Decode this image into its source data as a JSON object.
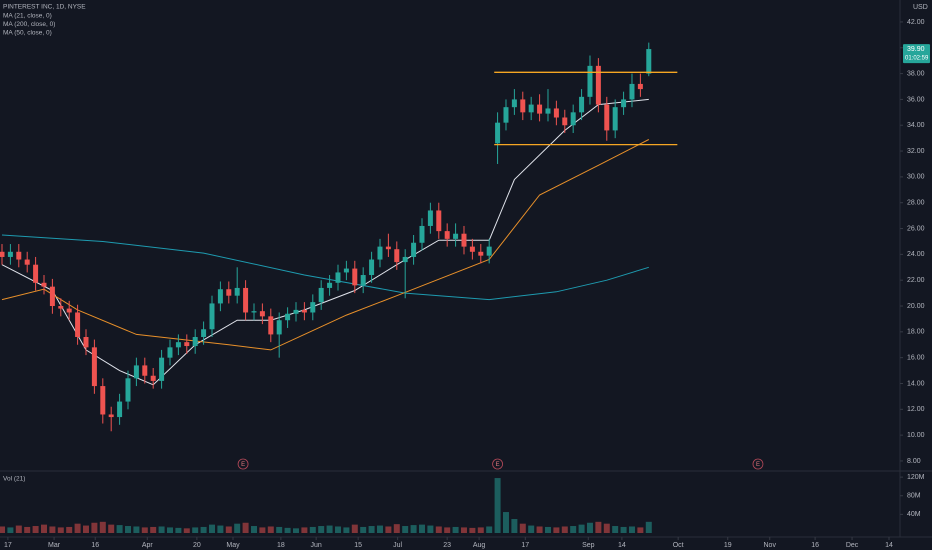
{
  "chart_data": {
    "type": "candlestick",
    "title": "PINTEREST INC, 1D, NYSE",
    "currency": "USD",
    "volume_label": "Vol (21)",
    "up_color": "#26a69a",
    "down_color": "#ef5350",
    "grid": false,
    "open": [
      24.2,
      23.8,
      24.2,
      23.6,
      23.2,
      21.8,
      21.5,
      20.0,
      19.8,
      19.5,
      17.6,
      16.8,
      13.8,
      11.6,
      11.4,
      12.6,
      14.4,
      15.4,
      14.6,
      14.2,
      16.0,
      16.8,
      17.2,
      16.9,
      17.6,
      18.2,
      20.2,
      21.3,
      20.8,
      21.4,
      19.5,
      19.6,
      19.2,
      17.8,
      18.9,
      19.4,
      19.7,
      19.5,
      20.3,
      21.4,
      21.8,
      22.6,
      22.9,
      21.6,
      22.4,
      23.6,
      24.6,
      24.4,
      23.4,
      23.8,
      24.9,
      26.2,
      27.4,
      25.8,
      25.2,
      25.6,
      24.6,
      24.2,
      23.9,
      32.6,
      34.2,
      35.4,
      36.0,
      35.0,
      35.6,
      34.9,
      35.3,
      34.6,
      34.0,
      35.0,
      36.2,
      38.6,
      35.6,
      33.6,
      35.4,
      36.0,
      37.2,
      38.0
    ],
    "high": [
      24.8,
      24.8,
      24.8,
      24.2,
      23.8,
      22.4,
      22.1,
      20.6,
      20.4,
      20.1,
      18.2,
      17.4,
      14.4,
      12.2,
      13.2,
      15.0,
      16.0,
      16.0,
      15.2,
      16.6,
      17.4,
      17.8,
      17.8,
      18.2,
      18.8,
      20.8,
      21.9,
      21.9,
      23.0,
      22.0,
      20.2,
      20.2,
      19.8,
      19.5,
      19.9,
      20.3,
      20.3,
      20.9,
      22.0,
      22.4,
      23.2,
      23.5,
      23.5,
      23.0,
      24.2,
      25.2,
      25.6,
      25.0,
      24.4,
      25.5,
      26.8,
      28.0,
      28.0,
      26.4,
      26.4,
      26.2,
      25.2,
      24.8,
      25.2,
      35.0,
      36.0,
      36.8,
      36.6,
      36.2,
      36.4,
      36.8,
      35.9,
      35.2,
      35.6,
      36.8,
      39.4,
      39.2,
      36.2,
      36.0,
      36.6,
      38.0,
      38.0,
      40.4
    ],
    "low": [
      23.2,
      23.2,
      23.0,
      22.6,
      21.2,
      20.9,
      19.4,
      19.2,
      18.9,
      17.0,
      16.2,
      13.2,
      10.9,
      10.3,
      10.8,
      12.0,
      13.8,
      14.0,
      13.6,
      13.6,
      15.4,
      16.2,
      16.3,
      16.3,
      17.0,
      17.6,
      19.6,
      20.2,
      20.2,
      18.9,
      18.9,
      18.6,
      17.2,
      16.0,
      18.3,
      18.8,
      18.9,
      18.9,
      19.7,
      20.8,
      21.2,
      22.0,
      21.0,
      21.0,
      21.8,
      23.0,
      23.8,
      22.8,
      20.6,
      23.2,
      24.3,
      25.6,
      25.2,
      24.6,
      24.6,
      24.0,
      23.6,
      23.3,
      23.3,
      31.0,
      33.6,
      34.8,
      34.4,
      34.4,
      34.3,
      34.3,
      34.0,
      33.4,
      33.4,
      34.4,
      35.6,
      35.0,
      32.8,
      33.0,
      34.8,
      35.4,
      36.2,
      37.8
    ],
    "close": [
      23.8,
      24.2,
      23.6,
      23.2,
      21.8,
      21.5,
      20.0,
      19.8,
      19.5,
      17.6,
      16.8,
      13.8,
      11.6,
      11.4,
      12.6,
      14.4,
      15.4,
      14.6,
      14.2,
      16.0,
      16.8,
      17.2,
      16.9,
      17.6,
      18.2,
      20.2,
      21.3,
      20.8,
      21.4,
      19.5,
      19.6,
      19.2,
      17.8,
      18.9,
      19.4,
      19.7,
      19.5,
      20.3,
      21.4,
      21.8,
      22.6,
      22.9,
      21.6,
      22.4,
      23.6,
      24.6,
      24.4,
      23.4,
      23.8,
      24.9,
      26.2,
      27.4,
      25.8,
      25.2,
      25.6,
      24.6,
      24.2,
      23.9,
      24.6,
      34.2,
      35.4,
      36.0,
      35.0,
      35.6,
      34.9,
      35.3,
      34.6,
      34.0,
      35.0,
      36.2,
      38.6,
      35.6,
      33.6,
      35.4,
      36.0,
      37.2,
      36.8,
      39.9
    ],
    "volume": [
      14,
      12,
      16,
      13,
      15,
      18,
      14,
      12,
      13,
      20,
      16,
      22,
      24,
      18,
      17,
      15,
      14,
      12,
      13,
      14,
      12,
      11,
      10,
      12,
      13,
      18,
      16,
      14,
      20,
      22,
      15,
      12,
      14,
      13,
      11,
      10,
      12,
      13,
      15,
      16,
      14,
      12,
      18,
      13,
      15,
      16,
      14,
      19,
      15,
      17,
      18,
      16,
      14,
      12,
      13,
      12,
      11,
      12,
      14,
      118,
      45,
      30,
      20,
      16,
      14,
      13,
      12,
      14,
      15,
      18,
      22,
      24,
      20,
      15,
      13,
      14,
      12,
      24
    ],
    "series": [
      {
        "name": "MA (21, close, 0)",
        "color": "#e0e3eb",
        "x": [
          0,
          6,
          10,
          14,
          18,
          23,
          28,
          32,
          36,
          42,
          47,
          52,
          58,
          61,
          67,
          71,
          77
        ],
        "values": [
          23.2,
          21.2,
          16.6,
          15.0,
          13.9,
          17.0,
          18.9,
          18.9,
          19.7,
          21.2,
          23.2,
          25.1,
          25.1,
          29.8,
          33.6,
          35.6,
          36.0
        ]
      },
      {
        "name": "MA (200, close, 0)",
        "color": "#1e9bb0",
        "x": [
          0,
          12,
          24,
          36,
          48,
          58,
          66,
          72,
          77
        ],
        "values": [
          25.5,
          25.0,
          24.1,
          22.4,
          21.0,
          20.5,
          21.1,
          22.0,
          23.0
        ]
      },
      {
        "name": "MA (50, close, 0)",
        "color": "#e8902a",
        "x": [
          0,
          5,
          9,
          16,
          27,
          32,
          36,
          41,
          47,
          58,
          64,
          71,
          77
        ],
        "values": [
          20.5,
          21.3,
          19.7,
          17.8,
          17.0,
          16.6,
          17.8,
          19.3,
          20.8,
          23.6,
          28.6,
          30.9,
          32.9
        ]
      }
    ],
    "levels": {
      "values": [
        38.1,
        32.5
      ],
      "x": [
        58.6,
        80.4
      ],
      "color": "#f5a623"
    },
    "earnings": {
      "label": "E",
      "x": [
        28.7,
        59,
        90
      ]
    },
    "price_tag": {
      "value": 39.9,
      "label": "39.90"
    },
    "countdown": "01:02:59",
    "xlim": [
      -0.238,
      106.67
    ],
    "xticks": [
      {
        "value": 0.7,
        "label": "17"
      },
      {
        "value": 6.2,
        "label": "Mar"
      },
      {
        "value": 11.1,
        "label": "16"
      },
      {
        "value": 17.3,
        "label": "Apr"
      },
      {
        "value": 23.2,
        "label": "20"
      },
      {
        "value": 27.5,
        "label": "May"
      },
      {
        "value": 33.2,
        "label": "18"
      },
      {
        "value": 37.4,
        "label": "Jun"
      },
      {
        "value": 42.4,
        "label": "15"
      },
      {
        "value": 47.1,
        "label": "Jul"
      },
      {
        "value": 53,
        "label": "23"
      },
      {
        "value": 56.8,
        "label": "Aug"
      },
      {
        "value": 62.3,
        "label": "17"
      },
      {
        "value": 69.8,
        "label": "Sep"
      },
      {
        "value": 73.8,
        "label": "14"
      },
      {
        "value": 80.5,
        "label": "Oct"
      },
      {
        "value": 86.4,
        "label": "19"
      },
      {
        "value": 91.4,
        "label": "Nov"
      },
      {
        "value": 96.8,
        "label": "16"
      },
      {
        "value": 101.2,
        "label": "Dec"
      },
      {
        "value": 105.6,
        "label": "14"
      }
    ],
    "ylim": [
      7.3,
      43.7
    ],
    "yticks": [
      {
        "value": 8,
        "label": "8.00"
      },
      {
        "value": 10,
        "label": "10.00"
      },
      {
        "value": 12,
        "label": "12.00"
      },
      {
        "value": 14,
        "label": "14.00"
      },
      {
        "value": 16,
        "label": "16.00"
      },
      {
        "value": 18,
        "label": "18.00"
      },
      {
        "value": 20,
        "label": "20.00"
      },
      {
        "value": 22,
        "label": "22.00"
      },
      {
        "value": 24,
        "label": "24.00"
      },
      {
        "value": 26,
        "label": "26.00"
      },
      {
        "value": 28,
        "label": "28.00"
      },
      {
        "value": 30,
        "label": "30.00"
      },
      {
        "value": 32,
        "label": "32.00"
      },
      {
        "value": 34,
        "label": "34.00"
      },
      {
        "value": 36,
        "label": "36.00"
      },
      {
        "value": 38,
        "label": "38.00"
      },
      {
        "value": 40,
        "label": "40.00"
      },
      {
        "value": 42,
        "label": "42.00"
      }
    ],
    "y2lim": [
      0,
      131
    ],
    "y2ticks": [
      {
        "value": 40,
        "label": "40M"
      },
      {
        "value": 80,
        "label": "80M"
      },
      {
        "value": 120,
        "label": "120M"
      }
    ]
  }
}
